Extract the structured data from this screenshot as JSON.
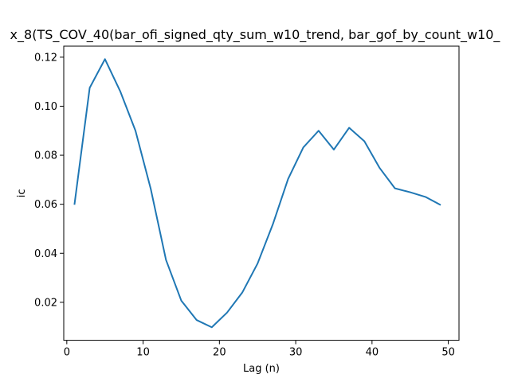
{
  "chart_data": {
    "type": "line",
    "title": "x_8(TS_COV_40(bar_ofi_signed_qty_sum_w10_trend, bar_gof_by_count_w10_",
    "xlabel": "Lag (n)",
    "ylabel": "ic",
    "xlim": [
      -0.4,
      51.4
    ],
    "ylim": [
      0.0045,
      0.1245
    ],
    "xticks": [
      0,
      10,
      20,
      30,
      40,
      50
    ],
    "yticks": [
      0.02,
      0.04,
      0.06,
      0.08,
      0.1,
      0.12
    ],
    "ytick_labels": [
      "0.02",
      "0.04",
      "0.06",
      "0.08",
      "0.10",
      "0.12"
    ],
    "grid": false,
    "line_color": "#1f77b4",
    "series": [
      {
        "x": [
          1,
          3,
          5,
          7,
          9,
          11,
          13,
          15,
          17,
          19,
          21,
          23,
          25,
          27,
          29,
          31,
          33,
          35,
          37,
          39,
          41,
          43,
          45,
          47,
          49
        ],
        "y": [
          0.0598,
          0.1075,
          0.1192,
          0.1061,
          0.09,
          0.0663,
          0.0373,
          0.0207,
          0.0128,
          0.0098,
          0.0158,
          0.024,
          0.0358,
          0.0518,
          0.0703,
          0.0832,
          0.09,
          0.0823,
          0.0912,
          0.0857,
          0.0748,
          0.0665,
          0.0649,
          0.063,
          0.0597
        ]
      }
    ]
  }
}
